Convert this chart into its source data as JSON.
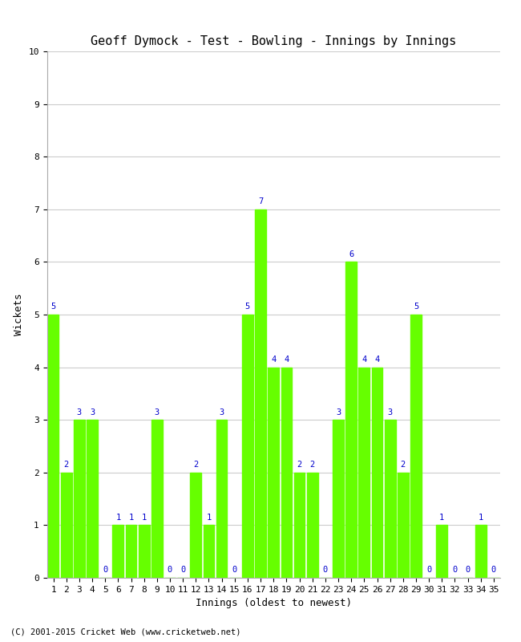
{
  "title": "Geoff Dymock - Test - Bowling - Innings by Innings",
  "xlabel": "Innings (oldest to newest)",
  "ylabel": "Wickets",
  "bar_color": "#66ff00",
  "label_color": "#0000cc",
  "background_color": "#ffffff",
  "grid_color": "#cccccc",
  "ylim": [
    0,
    10
  ],
  "yticks": [
    0,
    1,
    2,
    3,
    4,
    5,
    6,
    7,
    8,
    9,
    10
  ],
  "innings": [
    1,
    2,
    3,
    4,
    5,
    6,
    7,
    8,
    9,
    10,
    11,
    12,
    13,
    14,
    15,
    16,
    17,
    18,
    19,
    20,
    21,
    22,
    23,
    24,
    25,
    26,
    27,
    28,
    29,
    30,
    31,
    32,
    33,
    34,
    35
  ],
  "wickets": [
    5,
    2,
    3,
    3,
    0,
    1,
    1,
    1,
    3,
    0,
    0,
    2,
    1,
    3,
    0,
    5,
    7,
    4,
    4,
    2,
    2,
    0,
    3,
    6,
    4,
    4,
    3,
    2,
    5,
    0,
    1,
    0,
    0,
    1,
    0
  ],
  "footer": "(C) 2001-2015 Cricket Web (www.cricketweb.net)",
  "title_fontsize": 11,
  "axis_fontsize": 9,
  "label_fontsize": 7.5,
  "tick_fontsize": 8,
  "footer_fontsize": 7.5
}
